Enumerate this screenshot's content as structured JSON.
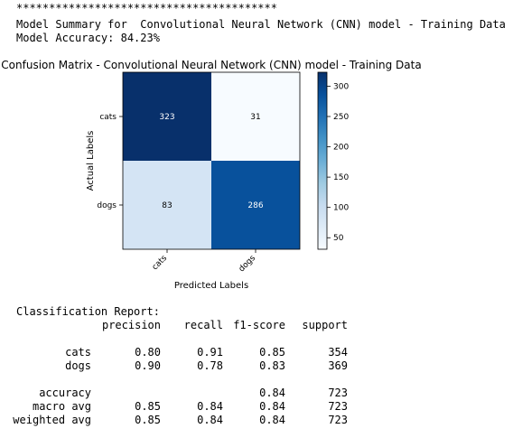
{
  "header": {
    "stars": "****************************************",
    "summary_line": "Model Summary for  Convolutional Neural Network (CNN) model - Training Data",
    "accuracy_line": "Model Accuracy: 84.23%"
  },
  "chart_data": {
    "type": "heatmap",
    "title": "Confusion Matrix - Convolutional Neural Network (CNN) model - Training Data",
    "xlabel": "Predicted Labels",
    "ylabel": "Actual Labels",
    "x_categories": [
      "cats",
      "dogs"
    ],
    "y_categories": [
      "cats",
      "dogs"
    ],
    "values": [
      [
        323,
        31
      ],
      [
        83,
        286
      ]
    ],
    "colormap": "Blues",
    "colorbar_ticks": [
      300,
      250,
      200,
      150,
      100,
      50
    ],
    "colorbar_range": [
      31,
      323
    ],
    "colors": {
      "high": "#08306b",
      "low": "#f7fbff"
    }
  },
  "report": {
    "title": "Classification Report:",
    "columns": [
      "precision",
      "recall",
      "f1-score",
      "support"
    ],
    "rows": [
      {
        "label": "cats",
        "precision": "0.80",
        "recall": "0.91",
        "f1": "0.85",
        "support": "354"
      },
      {
        "label": "dogs",
        "precision": "0.90",
        "recall": "0.78",
        "f1": "0.83",
        "support": "369"
      }
    ],
    "summary_rows": [
      {
        "label": "accuracy",
        "precision": "",
        "recall": "",
        "f1": "0.84",
        "support": "723"
      },
      {
        "label": "macro avg",
        "precision": "0.85",
        "recall": "0.84",
        "f1": "0.84",
        "support": "723"
      },
      {
        "label": "weighted avg",
        "precision": "0.85",
        "recall": "0.84",
        "f1": "0.84",
        "support": "723"
      }
    ]
  }
}
